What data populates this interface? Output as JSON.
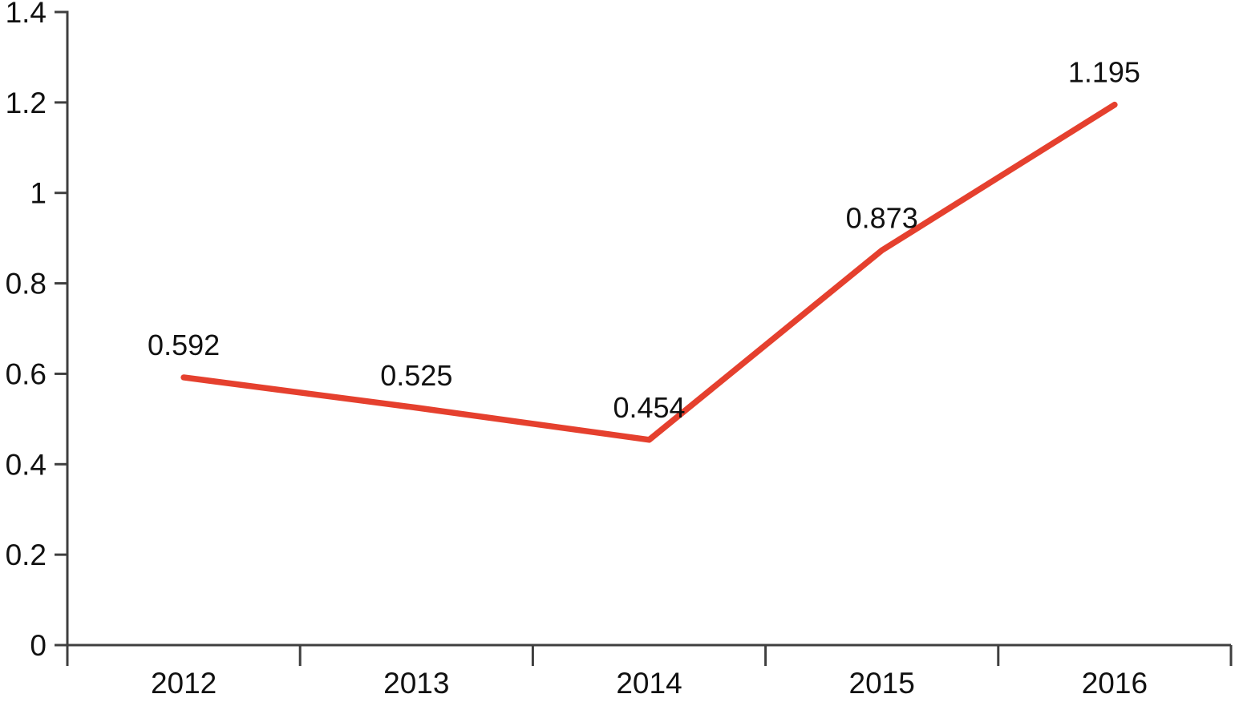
{
  "page": {
    "background_color": "#ffffff"
  },
  "chart_data": {
    "type": "line",
    "title": "",
    "xlabel": "",
    "ylabel": "",
    "categories": [
      "2012",
      "2013",
      "2014",
      "2015",
      "2016"
    ],
    "series": [
      {
        "name": "series-1",
        "values": [
          0.592,
          0.525,
          0.454,
          0.873,
          1.195
        ],
        "color": "#e5402e",
        "stroke_width": 7.5
      }
    ],
    "data_labels": [
      "0.592",
      "0.525",
      "0.454",
      "0.873",
      "1.195"
    ],
    "ylim": [
      0,
      1.4
    ],
    "y_ticks": [
      {
        "value": 0,
        "label": "0"
      },
      {
        "value": 0.2,
        "label": "0.2"
      },
      {
        "value": 0.4,
        "label": "0.4"
      },
      {
        "value": 0.6,
        "label": "0.6"
      },
      {
        "value": 0.8,
        "label": "0.8"
      },
      {
        "value": 1,
        "label": "1"
      },
      {
        "value": 1.2,
        "label": "1.2"
      },
      {
        "value": 1.4,
        "label": "1.4"
      }
    ],
    "grid": false,
    "legend": false,
    "markers": false,
    "x_tick_style": "category-boundaries",
    "axis_color": "#3f3f3f",
    "text_color": "#111111"
  }
}
